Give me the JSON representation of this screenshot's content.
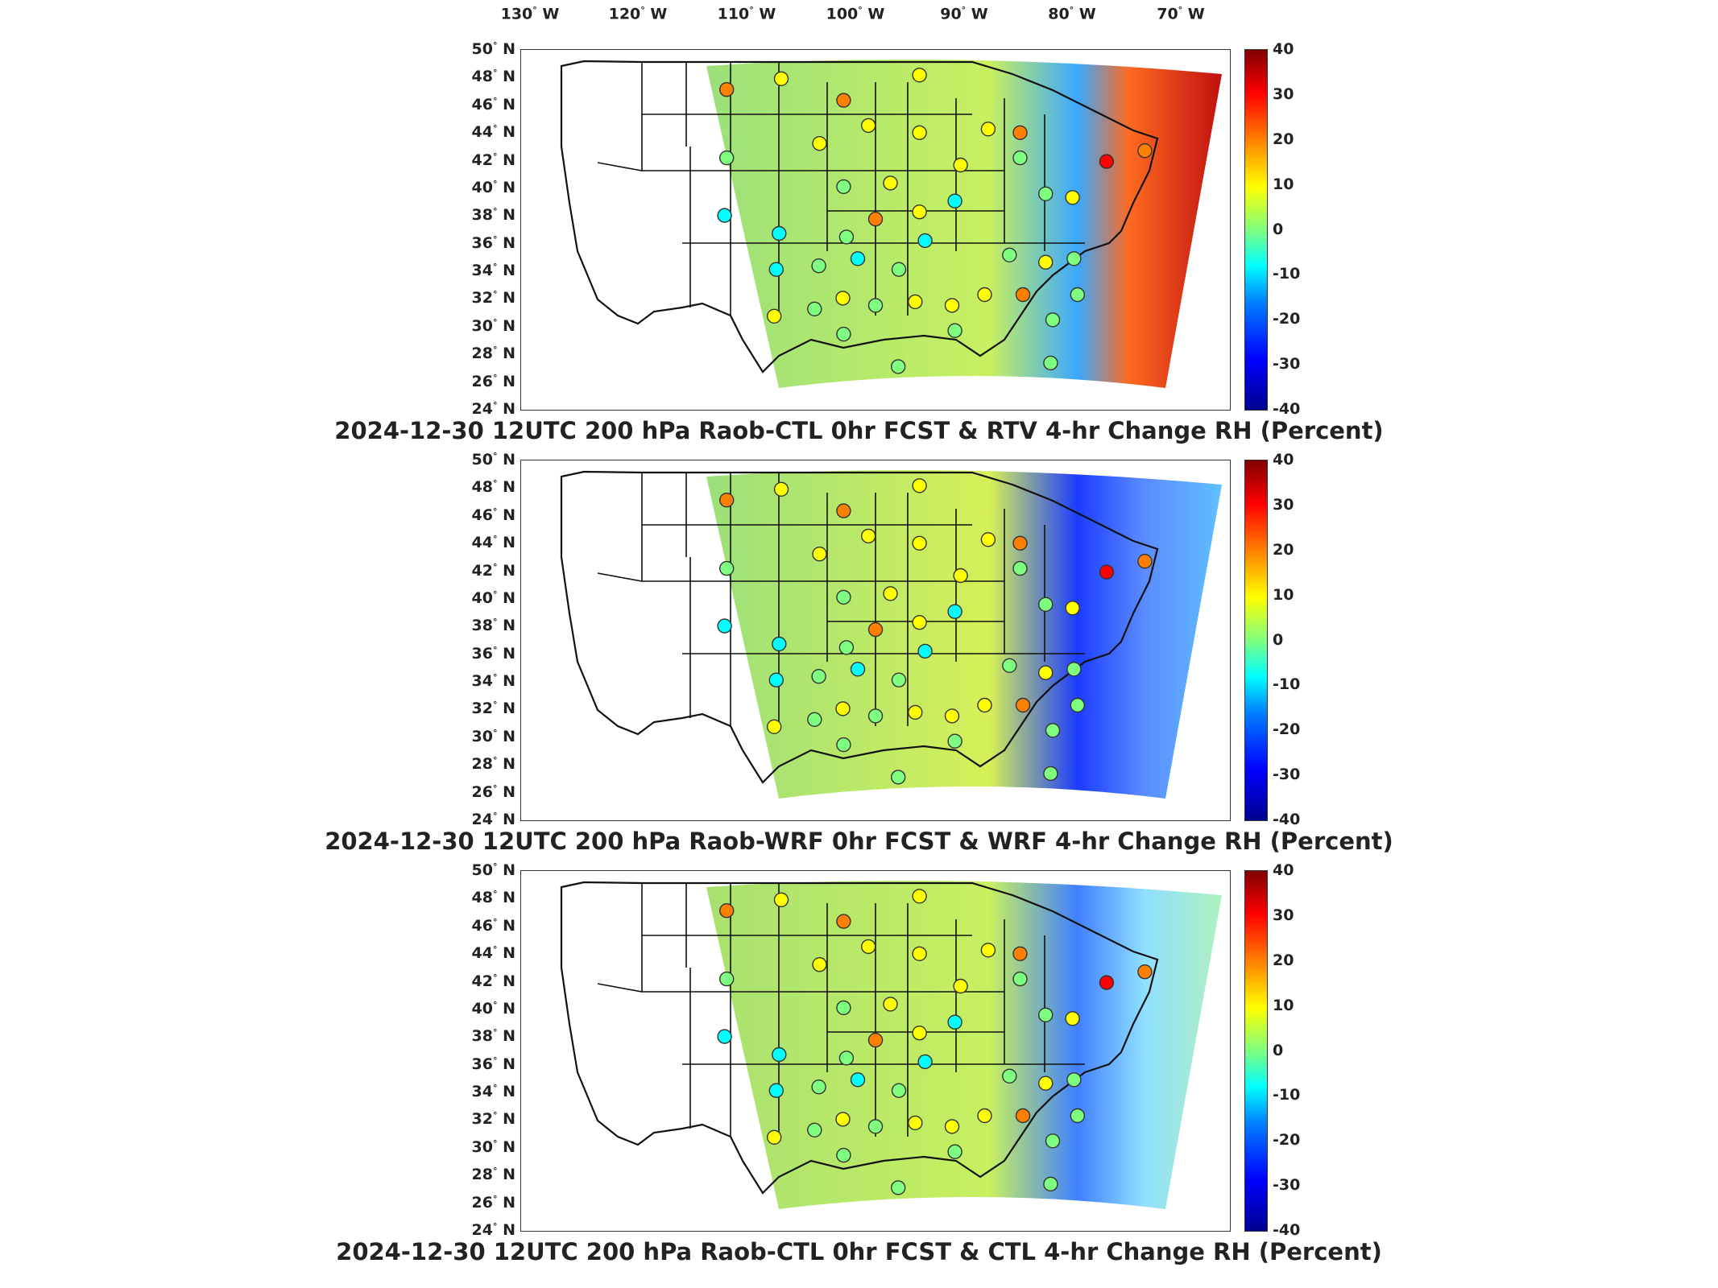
{
  "longitude_labels": [
    {
      "deg": "130",
      "dir": "W"
    },
    {
      "deg": "120",
      "dir": "W"
    },
    {
      "deg": "110",
      "dir": "W"
    },
    {
      "deg": "100",
      "dir": "W"
    },
    {
      "deg": "90",
      "dir": "W"
    },
    {
      "deg": "80",
      "dir": "W"
    },
    {
      "deg": "70",
      "dir": "W"
    }
  ],
  "latitude_labels": [
    {
      "deg": "50",
      "dir": "N"
    },
    {
      "deg": "48",
      "dir": "N"
    },
    {
      "deg": "46",
      "dir": "N"
    },
    {
      "deg": "44",
      "dir": "N"
    },
    {
      "deg": "42",
      "dir": "N"
    },
    {
      "deg": "40",
      "dir": "N"
    },
    {
      "deg": "38",
      "dir": "N"
    },
    {
      "deg": "36",
      "dir": "N"
    },
    {
      "deg": "34",
      "dir": "N"
    },
    {
      "deg": "32",
      "dir": "N"
    },
    {
      "deg": "30",
      "dir": "N"
    },
    {
      "deg": "28",
      "dir": "N"
    },
    {
      "deg": "26",
      "dir": "N"
    },
    {
      "deg": "24",
      "dir": "N"
    }
  ],
  "colorbar": {
    "ticks": [
      "40",
      "30",
      "20",
      "10",
      "0",
      "-10",
      "-20",
      "-30",
      "-40"
    ],
    "range": [
      -40,
      40
    ],
    "colormap": "jet",
    "colors": [
      "#00008f",
      "#0000ff",
      "#0080ff",
      "#00ffff",
      "#7fff7f",
      "#ffff00",
      "#ff8000",
      "#ff0000",
      "#800000"
    ]
  },
  "panels": [
    {
      "title": "2024-12-30 12UTC 200 hPa Raob-CTL 0hr FCST & RTV 4-hr Change RH (Percent)"
    },
    {
      "title": "2024-12-30 12UTC 200 hPa Raob-WRF 0hr FCST & WRF 4-hr Change RH (Percent)"
    },
    {
      "title": "2024-12-30 12UTC 200 hPa Raob-CTL 0hr FCST & CTL 4-hr Change RH (Percent)"
    }
  ],
  "colors": {
    "coastline": "#111111",
    "state_borders": "#111111",
    "domain_mid_field": "#7fe09a",
    "station_outline": "#333333"
  }
}
